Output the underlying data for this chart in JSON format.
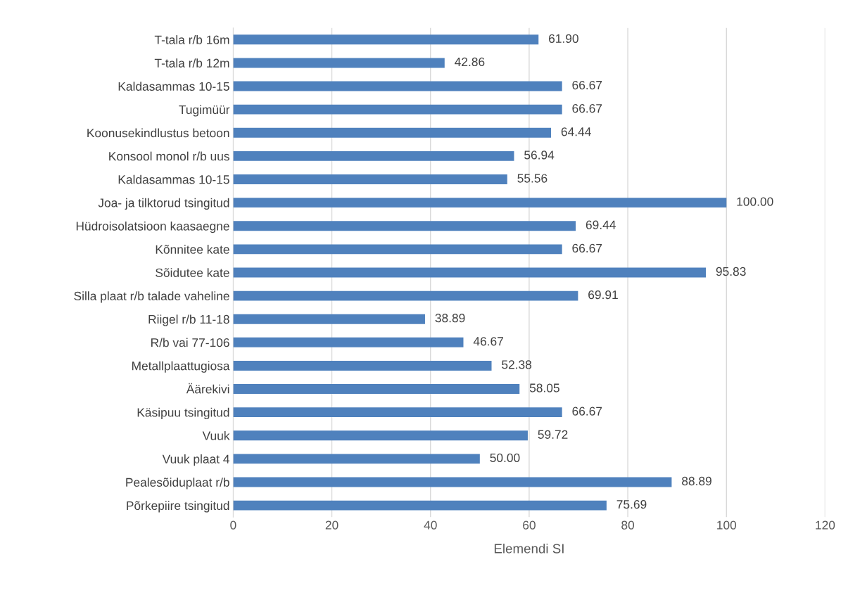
{
  "chart_data": {
    "type": "bar",
    "orientation": "horizontal",
    "xlabel": "Elemendi SI",
    "categories": [
      "T-tala r/b 16m",
      "T-tala r/b 12m",
      "Kaldasammas 10-15",
      "Tugimüür",
      "Koonusekindlustus betoon",
      "Konsool monol r/b uus",
      "Kaldasammas 10-15",
      "Joa- ja tilktorud tsingitud",
      "Hüdroisolatsioon kaasaegne",
      "Kõnnitee kate",
      "Sõidutee kate",
      "Silla plaat r/b talade vaheline",
      "Riigel r/b 11-18",
      "R/b vai 77-106",
      "Metallplaattugiosa",
      "Äärekivi",
      "Käsipuu tsingitud",
      "Vuuk",
      "Vuuk plaat 4",
      "Pealesõiduplaat r/b",
      "Põrkepiire tsingitud"
    ],
    "values": [
      61.9,
      42.86,
      66.67,
      66.67,
      64.44,
      56.94,
      55.56,
      100.0,
      69.44,
      66.67,
      95.83,
      69.91,
      38.89,
      46.67,
      52.38,
      58.05,
      66.67,
      59.72,
      50.0,
      88.89,
      75.69
    ],
    "value_labels": [
      "61.90",
      "42.86",
      "66.67",
      "66.67",
      "64.44",
      "56.94",
      "55.56",
      "100.00",
      "69.44",
      "66.67",
      "95.83",
      "69.91",
      "38.89",
      "46.67",
      "52.38",
      "58.05",
      "66.67",
      "59.72",
      "50.00",
      "88.89",
      "75.69"
    ],
    "color": "#4f81bd",
    "xlim": [
      0,
      120
    ],
    "xticks": [
      0,
      20,
      40,
      60,
      80,
      100,
      120
    ],
    "grid": "x"
  }
}
